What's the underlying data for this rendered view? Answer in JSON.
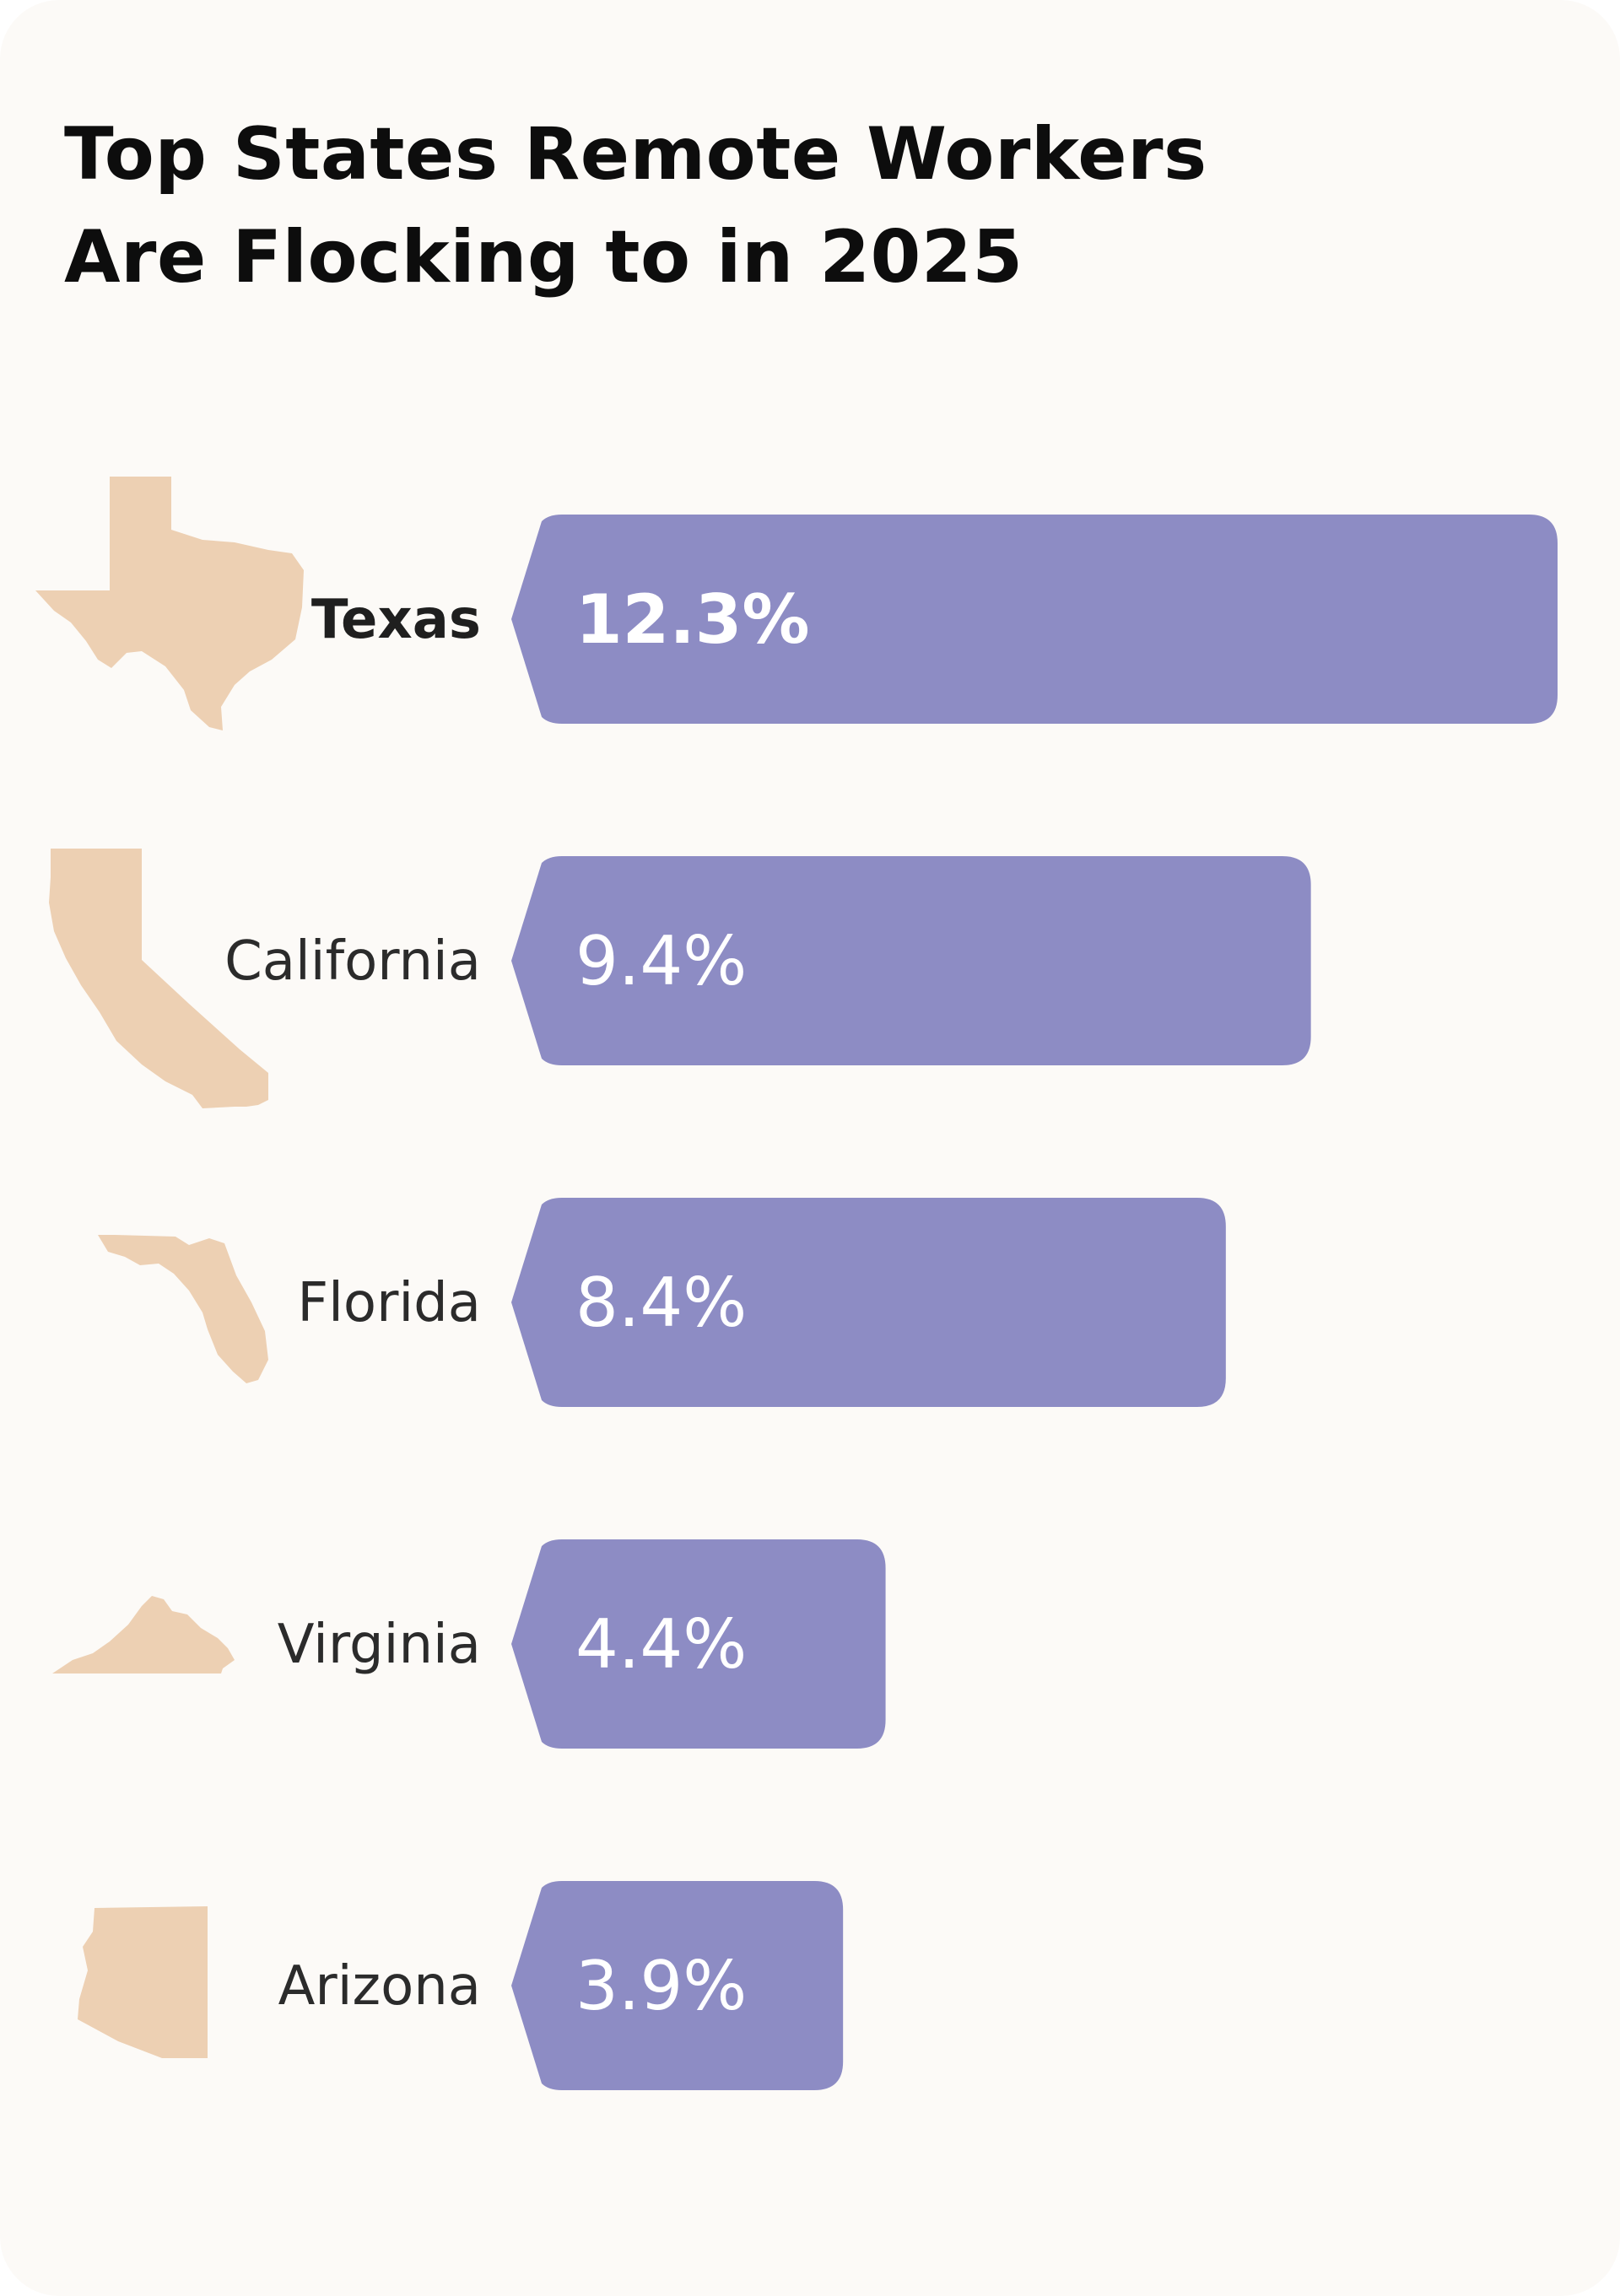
{
  "title": "Top States Remote Workers Are Flocking to in 2025",
  "title_lines": [
    "Top States Remote Workers",
    "Are Flocking to in 2025"
  ],
  "colors": {
    "background": "#fcfaf7",
    "bar": "#8d8cc4",
    "state_shape": "#edd0b3",
    "title": "#0d0d0d",
    "label": "#2b2b2b"
  },
  "chart_data": {
    "type": "bar",
    "orientation": "horizontal",
    "categories": [
      "Texas",
      "California",
      "Florida",
      "Virginia",
      "Arizona"
    ],
    "values": [
      12.3,
      9.4,
      8.4,
      4.4,
      3.9
    ],
    "value_labels": [
      "12.3%",
      "9.4%",
      "8.4%",
      "4.4%",
      "3.9%"
    ],
    "icons": [
      "texas-map-icon",
      "california-map-icon",
      "florida-map-icon",
      "virginia-map-icon",
      "arizona-map-icon"
    ],
    "highlight": "Texas",
    "title": "Top States Remote Workers Are Flocking to in 2025",
    "xlabel": "",
    "ylabel": "",
    "xlim": [
      0,
      12.3
    ],
    "grid": false,
    "legend": "none"
  }
}
